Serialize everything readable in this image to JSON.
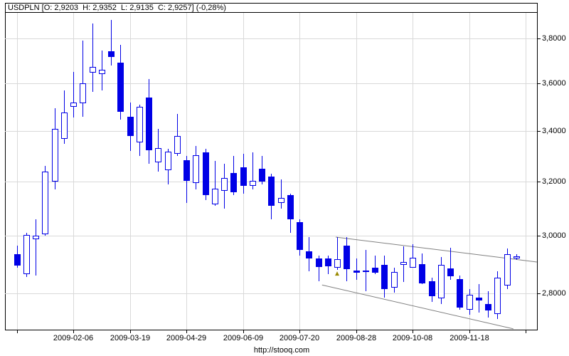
{
  "title": "USDPLN [O: 2,9203  H: 2,9352  L: 2,9135  C: 2,9257] (-0,28%)",
  "watermark": "http://stooq.com",
  "colors": {
    "background": "#ffffff",
    "frame": "#000000",
    "grid": "#d9d9d9",
    "candle": "#0000e6",
    "candle_up_fill": "#ffffff",
    "trendline": "#808080",
    "marker": "#9a8a00",
    "text": "#000000"
  },
  "chart_data": {
    "type": "candlestick",
    "title": "USDPLN [O: 2,9203  H: 2,9352  L: 2,9135  C: 2,9257] (-0,28%)",
    "symbol": "USDPLN",
    "last_candle": {
      "open": "2,9203",
      "high": "2,9352",
      "low": "2,9135",
      "close": "2,9257",
      "change_pct": "-0,28%"
    },
    "scale": "log",
    "grid": true,
    "y_axis": {
      "side": "right",
      "ticks": [
        {
          "label": "3,8000",
          "value": 3.8
        },
        {
          "label": "3,6000",
          "value": 3.6
        },
        {
          "label": "3,4000",
          "value": 3.4
        },
        {
          "label": "3,2000",
          "value": 3.2
        },
        {
          "label": "3,0000",
          "value": 3.0
        },
        {
          "label": "2,8000",
          "value": 2.8
        }
      ],
      "visible_range": [
        2.68,
        3.92
      ]
    },
    "x_axis": {
      "ticks": [
        {
          "index": 0,
          "label": ""
        },
        {
          "index": 6,
          "label": "2009-02-06"
        },
        {
          "index": 12,
          "label": "2009-03-19"
        },
        {
          "index": 18,
          "label": "2009-04-29"
        },
        {
          "index": 24,
          "label": "2009-06-09"
        },
        {
          "index": 30,
          "label": "2009-07-20"
        },
        {
          "index": 36,
          "label": "2009-08-28"
        },
        {
          "index": 42,
          "label": "2009-10-08"
        },
        {
          "index": 48,
          "label": "2009-11-18"
        },
        {
          "index": 54,
          "label": ""
        }
      ]
    },
    "candles_ohlc": [
      [
        2.934,
        2.965,
        2.888,
        2.895
      ],
      [
        2.865,
        3.01,
        2.855,
        3.003
      ],
      [
        2.987,
        3.06,
        2.86,
        2.999
      ],
      [
        3.005,
        3.263,
        3.0,
        3.24
      ],
      [
        3.2,
        3.495,
        3.17,
        3.41
      ],
      [
        3.37,
        3.57,
        3.35,
        3.477
      ],
      [
        3.5,
        3.652,
        3.457,
        3.52
      ],
      [
        3.515,
        3.79,
        3.46,
        3.6
      ],
      [
        3.649,
        3.87,
        3.566,
        3.674
      ],
      [
        3.64,
        3.745,
        3.57,
        3.66
      ],
      [
        3.742,
        3.885,
        3.68,
        3.717
      ],
      [
        3.69,
        3.772,
        3.447,
        3.48
      ],
      [
        3.46,
        3.52,
        3.32,
        3.38
      ],
      [
        3.355,
        3.51,
        3.3,
        3.5
      ],
      [
        3.54,
        3.62,
        3.27,
        3.325
      ],
      [
        3.275,
        3.41,
        3.24,
        3.331
      ],
      [
        3.245,
        3.33,
        3.19,
        3.317
      ],
      [
        3.31,
        3.47,
        3.3,
        3.38
      ],
      [
        3.285,
        3.3,
        3.12,
        3.205
      ],
      [
        3.195,
        3.34,
        3.17,
        3.305
      ],
      [
        3.315,
        3.33,
        3.13,
        3.15
      ],
      [
        3.115,
        3.28,
        3.11,
        3.175
      ],
      [
        3.167,
        3.27,
        3.1,
        3.216
      ],
      [
        3.235,
        3.3,
        3.15,
        3.16
      ],
      [
        3.255,
        3.31,
        3.155,
        3.185
      ],
      [
        3.185,
        3.315,
        3.17,
        3.205
      ],
      [
        3.25,
        3.3,
        3.19,
        3.2
      ],
      [
        3.22,
        3.23,
        3.06,
        3.11
      ],
      [
        3.12,
        3.21,
        3.1,
        3.14
      ],
      [
        3.15,
        3.155,
        3.01,
        3.06
      ],
      [
        3.05,
        3.06,
        2.93,
        2.95
      ],
      [
        2.945,
        2.995,
        2.875,
        2.92
      ],
      [
        2.92,
        2.93,
        2.84,
        2.89
      ],
      [
        2.92,
        2.93,
        2.865,
        2.891
      ],
      [
        2.886,
        2.995,
        2.88,
        2.918
      ],
      [
        2.965,
        2.995,
        2.84,
        2.883
      ],
      [
        2.877,
        2.92,
        2.845,
        2.87
      ],
      [
        2.878,
        2.95,
        2.807,
        2.872
      ],
      [
        2.888,
        2.93,
        2.865,
        2.869
      ],
      [
        2.898,
        2.93,
        2.785,
        2.815
      ],
      [
        2.82,
        2.887,
        2.803,
        2.872
      ],
      [
        2.898,
        2.963,
        2.838,
        2.908
      ],
      [
        2.886,
        2.97,
        2.886,
        2.923
      ],
      [
        2.9,
        2.938,
        2.83,
        2.833
      ],
      [
        2.84,
        2.853,
        2.771,
        2.79
      ],
      [
        2.783,
        2.924,
        2.763,
        2.898
      ],
      [
        2.885,
        2.958,
        2.845,
        2.858
      ],
      [
        2.847,
        2.86,
        2.745,
        2.753
      ],
      [
        2.745,
        2.815,
        2.73,
        2.795
      ],
      [
        2.785,
        2.83,
        2.737,
        2.775
      ],
      [
        2.765,
        2.807,
        2.72,
        2.743
      ],
      [
        2.732,
        2.874,
        2.716,
        2.852
      ],
      [
        2.825,
        2.955,
        2.815,
        2.935
      ],
      [
        2.9203,
        2.9352,
        2.9135,
        2.9257
      ]
    ],
    "trendlines": [
      {
        "name": "wedge-upper",
        "x1_index": 33.85,
        "y1_price": 2.995,
        "x2_index": 55.2,
        "y2_price": 2.907
      },
      {
        "name": "wedge-lower",
        "x1_index": 32.4,
        "y1_price": 2.828,
        "x2_index": 52.7,
        "y2_price": 2.683
      }
    ],
    "marker": {
      "index": 34,
      "price": 2.867,
      "shape": "up-arrow"
    }
  }
}
